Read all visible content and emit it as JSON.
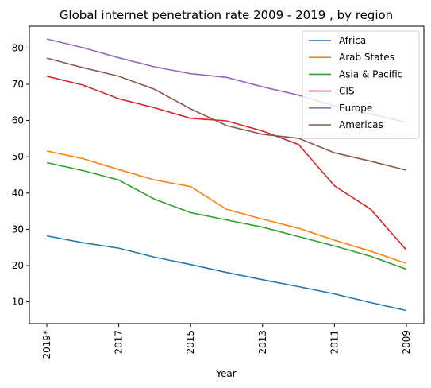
{
  "chart_data": {
    "type": "line",
    "title": "Global internet penetration rate 2009 - 2019 , by region",
    "xlabel": "Year",
    "ylabel": "",
    "x": [
      "2019*",
      "2018",
      "2017",
      "2016",
      "2015",
      "2014",
      "2013",
      "2012",
      "2011",
      "2010",
      "2009"
    ],
    "x_tick_labels": [
      "2019*",
      "2017",
      "2015",
      "2013",
      "2011",
      "2009"
    ],
    "x_tick_index": [
      0,
      2,
      4,
      6,
      8,
      10
    ],
    "y_ticks": [
      10,
      20,
      30,
      40,
      50,
      60,
      70,
      80
    ],
    "ylim": [
      4,
      86
    ],
    "grid": false,
    "legend_position": "top-right",
    "series": [
      {
        "name": "Africa",
        "color": "#1f77b4",
        "values": [
          28.2,
          26.3,
          24.8,
          22.3,
          20.3,
          18.1,
          16.1,
          14.2,
          12.2,
          9.8,
          7.6
        ]
      },
      {
        "name": "Arab States",
        "color": "#ff7f0e",
        "values": [
          51.6,
          49.5,
          46.5,
          43.6,
          41.8,
          35.5,
          32.8,
          30.3,
          27.0,
          24.0,
          20.6
        ]
      },
      {
        "name": "Asia & Pacific",
        "color": "#2ca02c",
        "values": [
          48.4,
          46.2,
          43.6,
          38.3,
          34.6,
          32.6,
          30.6,
          28.0,
          25.4,
          22.6,
          19.0
        ]
      },
      {
        "name": "CIS",
        "color": "#d62728",
        "values": [
          72.2,
          69.8,
          66.0,
          63.5,
          60.6,
          59.9,
          57.1,
          53.4,
          42.0,
          35.6,
          24.3
        ]
      },
      {
        "name": "Europe",
        "color": "#9467bd",
        "values": [
          82.5,
          80.1,
          77.3,
          74.8,
          72.9,
          71.9,
          69.3,
          67.0,
          64.0,
          61.8,
          59.5
        ]
      },
      {
        "name": "Americas",
        "color": "#8c564b",
        "values": [
          77.2,
          74.6,
          72.2,
          68.6,
          63.2,
          58.6,
          56.2,
          55.1,
          51.1,
          48.8,
          46.3
        ]
      }
    ]
  }
}
